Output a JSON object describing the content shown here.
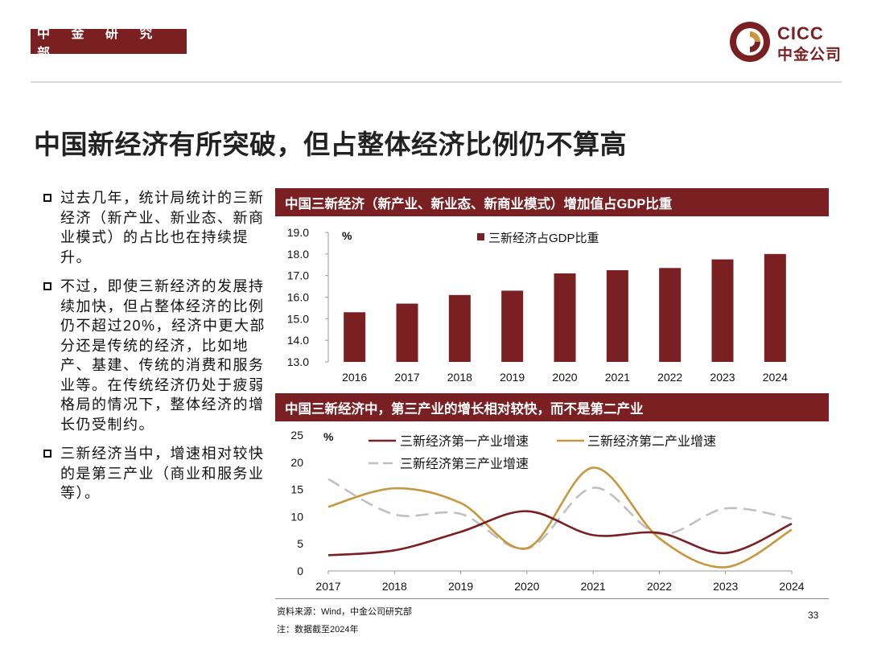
{
  "header": {
    "department": "中 金 研 究 部",
    "logo_en": "CICC",
    "logo_cn": "中金公司"
  },
  "colors": {
    "brand": "#7a1f22",
    "gold": "#c6973f",
    "grey": "#c0c0c0"
  },
  "title": "中国新经济有所突破，但占整体经济比例仍不算高",
  "bullets": [
    "过去几年，统计局统计的三新经济（新产业、新业态、新商业模式）的占比也在持续提升。",
    "不过，即使三新经济的发展持续加快，但占整体经济的比例仍不超过20%，经济中更大部分还是传统的经济，比如地产、基建、传统的消费和服务业等。在传统经济仍处于疲弱格局的情况下，整体经济的增长仍受制约。",
    "三新经济当中，增速相对较快的是第三产业（商业和服务业等）。"
  ],
  "chart_data": [
    {
      "type": "bar",
      "title": "中国三新经济（新产业、新业态、新商业模式）增加值占GDP比重",
      "ylabel": "%",
      "ylim": [
        13.0,
        19.0
      ],
      "yticks": [
        "19.0",
        "18.0",
        "17.0",
        "16.0",
        "15.0",
        "14.0",
        "13.0"
      ],
      "categories": [
        "2016",
        "2017",
        "2018",
        "2019",
        "2020",
        "2021",
        "2022",
        "2023",
        "2024"
      ],
      "series": [
        {
          "name": "三新经济占GDP比重",
          "color": "#7a1f22",
          "values": [
            15.3,
            15.7,
            16.1,
            16.3,
            17.1,
            17.25,
            17.35,
            17.75,
            18.0
          ]
        }
      ]
    },
    {
      "type": "line",
      "title": "中国三新经济中，第三产业的增长相对较快，而不是第二产业",
      "ylabel": "%",
      "ylim": [
        0,
        25
      ],
      "yticks": [
        "25",
        "20",
        "15",
        "10",
        "5",
        "0"
      ],
      "categories": [
        "2017",
        "2018",
        "2019",
        "2020",
        "2021",
        "2022",
        "2023",
        "2024"
      ],
      "series": [
        {
          "name": "三新经济第一产业增速",
          "color": "#7a1f22",
          "dash": false,
          "values": [
            2.9,
            3.8,
            7.2,
            11.0,
            6.6,
            7.0,
            3.3,
            8.7
          ]
        },
        {
          "name": "三新经济第二产业增速",
          "color": "#c6973f",
          "dash": false,
          "values": [
            11.8,
            15.2,
            12.5,
            4.2,
            19.0,
            6.0,
            0.7,
            7.6
          ]
        },
        {
          "name": "三新经济第三产业增速",
          "color": "#c0c0c0",
          "dash": true,
          "values": [
            16.9,
            10.4,
            10.5,
            4.1,
            15.3,
            6.8,
            11.5,
            9.6
          ]
        }
      ]
    }
  ],
  "footer": {
    "source": "资料来源：Wind，中金公司研究部",
    "note": "注：数据截至2024年",
    "page": "33"
  }
}
